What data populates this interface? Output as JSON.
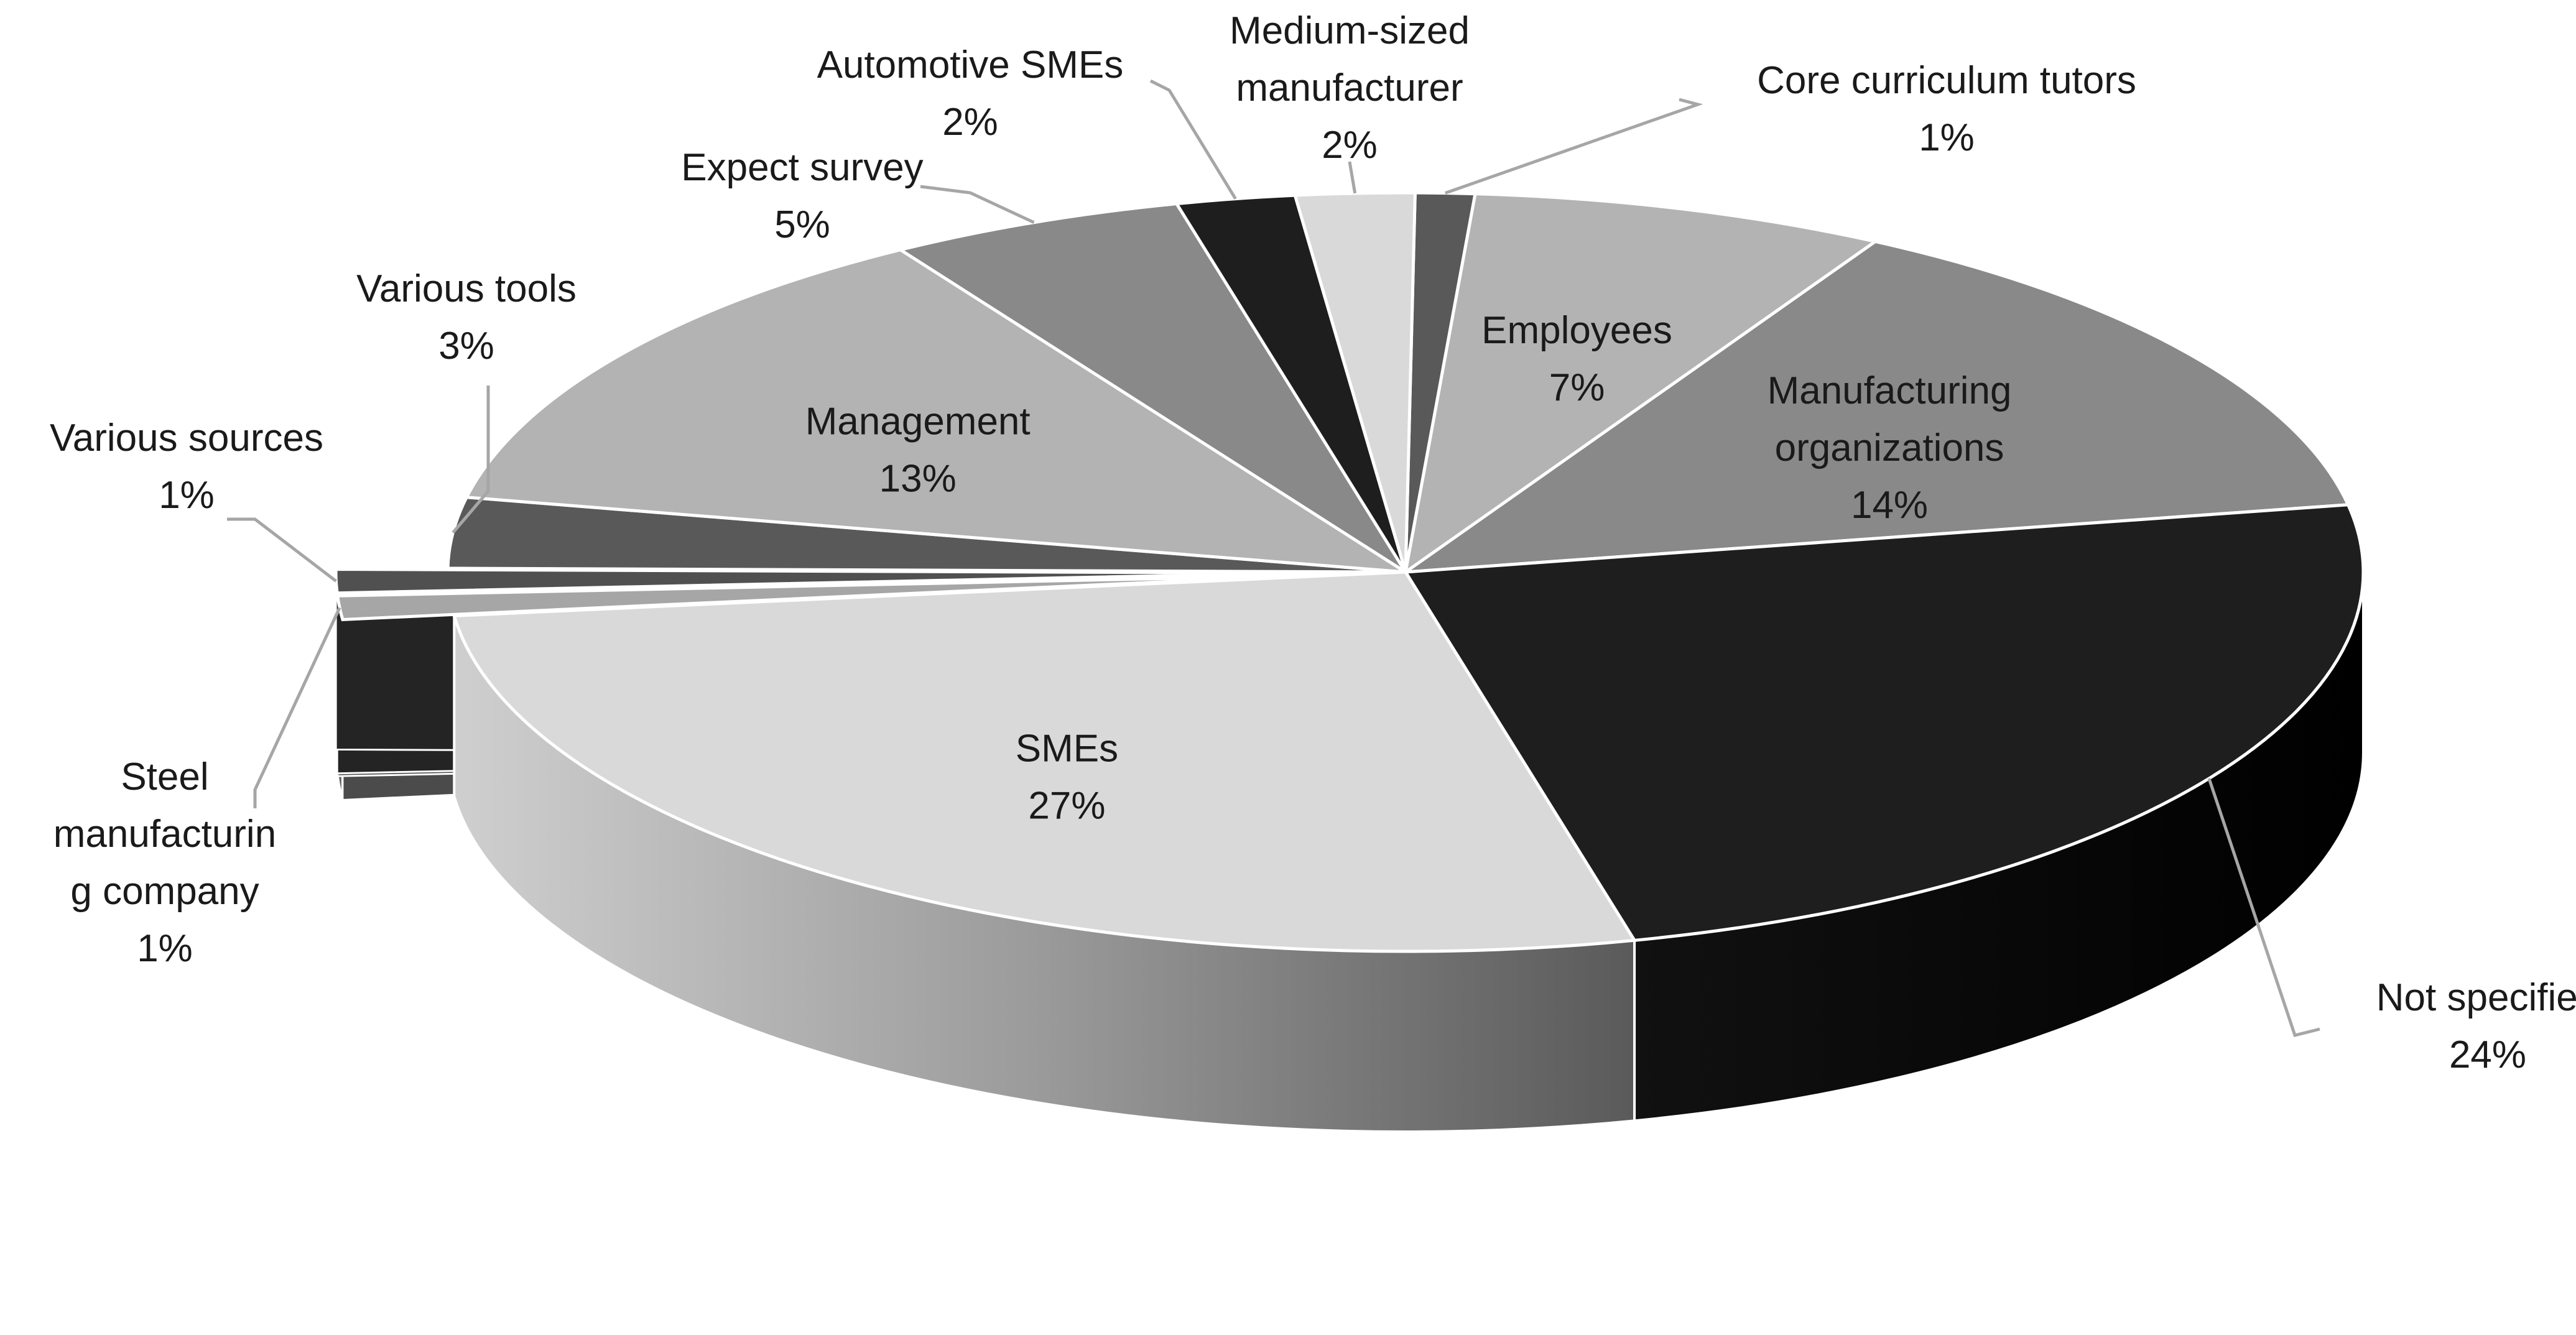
{
  "chart_data": {
    "type": "pie",
    "three_d": true,
    "title": "",
    "slices": [
      {
        "label": "Core curriculum tutors",
        "lines": [
          "Core curriculum tutors"
        ],
        "pct_label": "1%",
        "value": 1,
        "color": "#595959"
      },
      {
        "label": "Employees",
        "lines": [
          "Employees"
        ],
        "pct_label": "7%",
        "value": 7,
        "color": "#b3b3b3"
      },
      {
        "label": "Manufacturing organizations",
        "lines": [
          "Manufacturing",
          "organizations"
        ],
        "pct_label": "14%",
        "value": 14,
        "color": "#898989"
      },
      {
        "label": "Not specified",
        "lines": [
          "Not specified"
        ],
        "pct_label": "24%",
        "value": 24,
        "color": "#1e1e1e"
      },
      {
        "label": "SMEs",
        "lines": [
          "SMEs"
        ],
        "pct_label": "27%",
        "value": 27,
        "color": "#d9d9d9"
      },
      {
        "label": "Steel manufacturing company",
        "lines": [
          "Steel",
          "manufacturin",
          "g company"
        ],
        "pct_label": "1%",
        "value": 1,
        "color": "#a6a6a6",
        "exploded": true
      },
      {
        "label": "Various sources",
        "lines": [
          "Various sources"
        ],
        "pct_label": "1%",
        "value": 1,
        "color": "#505050",
        "exploded": true
      },
      {
        "label": "Various tools",
        "lines": [
          "Various tools"
        ],
        "pct_label": "3%",
        "value": 3,
        "color": "#595959"
      },
      {
        "label": "Management",
        "lines": [
          "Management"
        ],
        "pct_label": "13%",
        "value": 13,
        "color": "#b3b3b3"
      },
      {
        "label": "Expect survey",
        "lines": [
          "Expect survey"
        ],
        "pct_label": "5%",
        "value": 5,
        "color": "#898989"
      },
      {
        "label": "Automotive SMEs",
        "lines": [
          "Automotive SMEs"
        ],
        "pct_label": "2%",
        "value": 2,
        "color": "#1e1e1e"
      },
      {
        "label": "Medium-sized manufacturer",
        "lines": [
          "Medium-sized",
          "manufacturer"
        ],
        "pct_label": "2%",
        "value": 2,
        "color": "#d9d9d9"
      }
    ],
    "legend": "none",
    "data_labels": "category name and percentage"
  }
}
